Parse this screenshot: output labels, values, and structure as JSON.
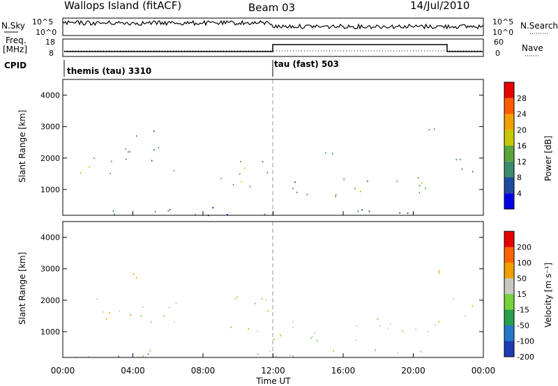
{
  "header": {
    "site": "Wallops Island (fitACF)",
    "beam": "Beam 03",
    "date": "14/Jul/2010"
  },
  "noise_panel": {
    "left_label": "N.Sky",
    "right_label": "N.Search",
    "ticks": [
      "10^5",
      "10^0"
    ]
  },
  "freq_panel": {
    "left_label_1": "Freq.",
    "left_label_2": "[MHz]",
    "left_ticks": [
      "18",
      "8"
    ],
    "right_ticks": [
      "60",
      "0"
    ],
    "right_label": "Nave",
    "cpid_label": "CPID",
    "cpid_segments": [
      "themis (tau) 3310",
      "tau (fast) 503"
    ]
  },
  "power_panel": {
    "ylabel": "Slant Range [km]",
    "yticks": [
      "4000",
      "3000",
      "2000",
      "1000"
    ],
    "colorbar_label": "Power [dB]",
    "colorbar_ticks": [
      "28",
      "24",
      "20",
      "16",
      "12",
      "8",
      "4"
    ],
    "colors": [
      "#0000e6",
      "#1e4ba0",
      "#3c8c6e",
      "#5aa53c",
      "#c8c800",
      "#f0a000",
      "#ff5a00",
      "#e60000"
    ]
  },
  "velocity_panel": {
    "ylabel": "Slant Range [km]",
    "yticks": [
      "4000",
      "3000",
      "2000",
      "1000"
    ],
    "colorbar_label": "Velocity [m s⁻¹]",
    "colorbar_ticks": [
      "200",
      "100",
      "50",
      "15",
      "-15",
      "-50",
      "-100",
      "-200"
    ],
    "colors": [
      "#1e3cb4",
      "#2878c8",
      "#28a04b",
      "#78d23c",
      "#c8c8c0",
      "#f0a000",
      "#ff6400",
      "#e60000"
    ]
  },
  "xaxis": {
    "ticks": [
      "00:00",
      "04:00",
      "08:00",
      "12:00",
      "16:00",
      "20:00",
      "00:00"
    ],
    "label": "Time UT"
  },
  "chart_data": {
    "type": "heatmap",
    "x_range_hours": [
      0,
      24
    ],
    "y_range_km": [
      180,
      4500
    ],
    "mode_change_hour": 12,
    "power_regions": [
      {
        "t0": 0.0,
        "t1": 1.5,
        "r0": 1400,
        "r1": 1900,
        "level": 4
      },
      {
        "t0": 1.5,
        "t1": 3.0,
        "r0": 1400,
        "r1": 2100,
        "level": 3
      },
      {
        "t0": 3.0,
        "t1": 5.5,
        "r0": 1700,
        "r1": 3100,
        "level": 2
      },
      {
        "t0": 5.5,
        "t1": 6.5,
        "r0": 1500,
        "r1": 1900,
        "level": 3
      },
      {
        "t0": 9.0,
        "t1": 11.8,
        "r0": 1000,
        "r1": 2300,
        "level": 3
      },
      {
        "t0": 12.0,
        "t1": 14.0,
        "r0": 700,
        "r1": 1500,
        "level": 2
      },
      {
        "t0": 14.0,
        "t1": 15.5,
        "r0": 1800,
        "r1": 2400,
        "level": 3
      },
      {
        "t0": 15.5,
        "t1": 21.5,
        "r0": 600,
        "r1": 1400,
        "level": 3
      },
      {
        "t0": 20.0,
        "t1": 21.8,
        "r0": 2600,
        "r1": 3100,
        "level": 2
      },
      {
        "t0": 22.0,
        "t1": 24.0,
        "r0": 1500,
        "r1": 2200,
        "level": 2
      },
      {
        "t0": 0.0,
        "t1": 24.0,
        "r0": 200,
        "r1": 450,
        "level": 1
      }
    ],
    "velocity_regions": [
      {
        "t0": 0.0,
        "t1": 6.5,
        "r0": 1300,
        "r1": 2100,
        "bin": 4
      },
      {
        "t0": 3.0,
        "t1": 4.5,
        "r0": 2500,
        "r1": 2900,
        "bin": 5
      },
      {
        "t0": 9.0,
        "t1": 11.8,
        "r0": 1000,
        "r1": 2300,
        "bin": 4
      },
      {
        "t0": 12.0,
        "t1": 21.5,
        "r0": 700,
        "r1": 1500,
        "bin": 4
      },
      {
        "t0": 20.0,
        "t1": 21.8,
        "r0": 2600,
        "r1": 3100,
        "bin": 4
      },
      {
        "t0": 22.0,
        "t1": 24.0,
        "r0": 1500,
        "r1": 2200,
        "bin": 4
      },
      {
        "t0": 0.0,
        "t1": 12.0,
        "r0": 200,
        "r1": 450,
        "bin": 3
      },
      {
        "t0": 12.0,
        "t1": 24.0,
        "r0": 200,
        "r1": 450,
        "bin": 4
      }
    ]
  }
}
